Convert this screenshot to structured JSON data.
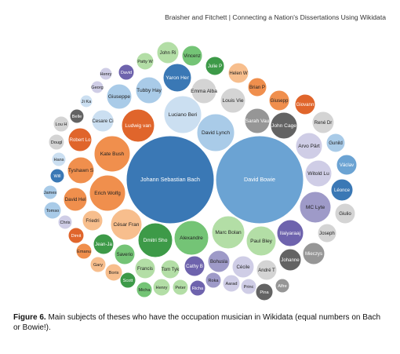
{
  "header": "Braisher and Fitchett | Connecting a Nation's Dissertations Using Wikidata",
  "caption": {
    "label": "Figure 6.",
    "text": " Main subjects of theses who have the occupation musician in Wikidata (equal numbers on Bach or Bowie!)."
  },
  "chart_data": {
    "type": "bubble",
    "colors": {
      "dark_blue": "#3a78b5",
      "mid_blue": "#6ba3d3",
      "light_blue": "#a9cbe8",
      "pale_blue": "#cbdff1",
      "dark_orange": "#e0652b",
      "mid_orange": "#f08f4d",
      "light_orange": "#f7be8d",
      "dark_green": "#3d9a48",
      "mid_green": "#74c476",
      "light_green": "#b3dea6",
      "dark_purple": "#6e63ad",
      "mid_purple": "#9e9ac8",
      "light_purple": "#cfcde6",
      "dark_gray": "#636363",
      "mid_gray": "#969696",
      "light_gray": "#d4d4d4"
    },
    "bubbles": [
      {
        "label": "Johann Sebastian Bach",
        "size": 10,
        "color": "dark_blue"
      },
      {
        "label": "David Bowie",
        "size": 10,
        "color": "mid_blue"
      },
      {
        "label": "Luciano Beri",
        "size": 3,
        "color": "pale_blue"
      },
      {
        "label": "David Lynch",
        "size": 2.2,
        "color": "light_blue"
      },
      {
        "label": "Kate Bush",
        "size": 2,
        "color": "mid_orange"
      },
      {
        "label": "Erich Wolfg",
        "size": 2,
        "color": "mid_orange"
      },
      {
        "label": "César Fran",
        "size": 1.8,
        "color": "light_orange"
      },
      {
        "label": "Dmitri Sho",
        "size": 1.8,
        "color": "dark_green"
      },
      {
        "label": "Alexandre",
        "size": 1.8,
        "color": "mid_green"
      },
      {
        "label": "Marc Bolan",
        "size": 1.6,
        "color": "light_green"
      },
      {
        "label": "Paul Bley",
        "size": 1.6,
        "color": "light_green"
      },
      {
        "label": "MC Lyte",
        "size": 1.6,
        "color": "mid_purple"
      },
      {
        "label": "Ludwig van",
        "size": 1.6,
        "color": "dark_orange"
      },
      {
        "label": "Yaron Her",
        "size": 1.4,
        "color": "dark_blue"
      },
      {
        "label": "Tubby Hay",
        "size": 1.3,
        "color": "light_blue"
      },
      {
        "label": "Emma Alba",
        "size": 1.3,
        "color": "light_gray"
      },
      {
        "label": "Giuseppe",
        "size": 1.3,
        "color": "light_blue"
      },
      {
        "label": "Louis Vie",
        "size": 1.2,
        "color": "light_gray"
      },
      {
        "label": "Sarah Vau",
        "size": 1.2,
        "color": "mid_gray"
      },
      {
        "label": "John Cage",
        "size": 1.3,
        "color": "dark_gray"
      },
      {
        "label": "Arvo Pärt",
        "size": 1.3,
        "color": "light_purple"
      },
      {
        "label": "Witold Lu",
        "size": 1.3,
        "color": "light_purple"
      },
      {
        "label": "Robert Lo",
        "size": 1.3,
        "color": "dark_orange"
      },
      {
        "label": "Tyshawn S",
        "size": 1.3,
        "color": "mid_orange"
      },
      {
        "label": "David Hel",
        "size": 1.3,
        "color": "mid_orange"
      },
      {
        "label": "Cesare Ci",
        "size": 1.1,
        "color": "pale_blue"
      },
      {
        "label": "Ilaiyaraaj",
        "size": 1.3,
        "color": "dark_purple"
      },
      {
        "label": "Joseph",
        "size": 1.0,
        "color": "light_gray"
      },
      {
        "label": "Johanne",
        "size": 1.0,
        "color": "dark_gray"
      },
      {
        "label": "Mieczys",
        "size": 1.0,
        "color": "mid_gray"
      },
      {
        "label": "Giusepp",
        "size": 1.0,
        "color": "mid_orange"
      },
      {
        "label": "Giovann",
        "size": 1.0,
        "color": "dark_orange"
      },
      {
        "label": "Brian P",
        "size": 0.9,
        "color": "mid_orange"
      },
      {
        "label": "Helen W",
        "size": 0.9,
        "color": "light_orange"
      },
      {
        "label": "Julie P",
        "size": 0.9,
        "color": "dark_green"
      },
      {
        "label": "Vincenz",
        "size": 0.9,
        "color": "mid_green"
      },
      {
        "label": "John Ri",
        "size": 0.9,
        "color": "light_green"
      },
      {
        "label": "Patty W",
        "size": 0.8,
        "color": "light_green"
      },
      {
        "label": "Henry",
        "size": 0.6,
        "color": "light_purple"
      },
      {
        "label": "David",
        "size": 0.6,
        "color": "dark_purple"
      },
      {
        "label": "Georg",
        "size": 0.6,
        "color": "light_purple"
      },
      {
        "label": "Ji Ka",
        "size": 0.6,
        "color": "pale_blue"
      },
      {
        "label": "Belle",
        "size": 0.6,
        "color": "dark_gray"
      },
      {
        "label": "Lou H",
        "size": 0.6,
        "color": "light_gray"
      },
      {
        "label": "Dougl",
        "size": 0.6,
        "color": "light_gray"
      },
      {
        "label": "Hans",
        "size": 0.6,
        "color": "pale_blue"
      },
      {
        "label": "Will",
        "size": 0.6,
        "color": "dark_blue"
      },
      {
        "label": "James",
        "size": 0.6,
        "color": "light_blue"
      },
      {
        "label": "Tomso",
        "size": 0.6,
        "color": "light_blue"
      },
      {
        "label": "Chris",
        "size": 0.6,
        "color": "light_purple"
      },
      {
        "label": "Friedri",
        "size": 0.8,
        "color": "light_orange"
      },
      {
        "label": "Dimit",
        "size": 0.6,
        "color": "dark_orange"
      },
      {
        "label": "Emanu",
        "size": 0.6,
        "color": "mid_orange"
      },
      {
        "label": "Gary",
        "size": 0.6,
        "color": "light_orange"
      },
      {
        "label": "Jean-Ja",
        "size": 0.8,
        "color": "dark_green"
      },
      {
        "label": "Saverio",
        "size": 0.8,
        "color": "mid_green"
      },
      {
        "label": "Boris",
        "size": 0.6,
        "color": "light_orange"
      },
      {
        "label": "Francis",
        "size": 0.8,
        "color": "light_green"
      },
      {
        "label": "Tom Tyk",
        "size": 0.8,
        "color": "light_green"
      },
      {
        "label": "Cathy B",
        "size": 0.8,
        "color": "dark_purple"
      },
      {
        "label": "Bohusla",
        "size": 0.8,
        "color": "mid_purple"
      },
      {
        "label": "Cécile",
        "size": 0.8,
        "color": "light_purple"
      },
      {
        "label": "André T",
        "size": 0.8,
        "color": "light_gray"
      },
      {
        "label": "Scott",
        "size": 0.6,
        "color": "dark_green"
      },
      {
        "label": "Micha",
        "size": 0.6,
        "color": "mid_green"
      },
      {
        "label": "Henry",
        "size": 0.6,
        "color": "light_green"
      },
      {
        "label": "Peter",
        "size": 0.6,
        "color": "light_green"
      },
      {
        "label": "Richa",
        "size": 0.6,
        "color": "dark_purple"
      },
      {
        "label": "Roka",
        "size": 0.6,
        "color": "mid_purple"
      },
      {
        "label": "Aarad",
        "size": 0.6,
        "color": "light_purple"
      },
      {
        "label": "Princ",
        "size": 0.6,
        "color": "light_purple"
      },
      {
        "label": "Pina",
        "size": 0.6,
        "color": "dark_gray"
      },
      {
        "label": "Alfre",
        "size": 0.6,
        "color": "mid_gray"
      },
      {
        "label": "René Dr",
        "size": 0.8,
        "color": "light_gray"
      },
      {
        "label": "Gunild",
        "size": 0.7,
        "color": "light_blue"
      },
      {
        "label": "Václav",
        "size": 0.8,
        "color": "mid_blue"
      },
      {
        "label": "Léonce",
        "size": 0.8,
        "color": "dark_blue"
      },
      {
        "label": "Giulio",
        "size": 0.8,
        "color": "light_gray"
      }
    ]
  }
}
